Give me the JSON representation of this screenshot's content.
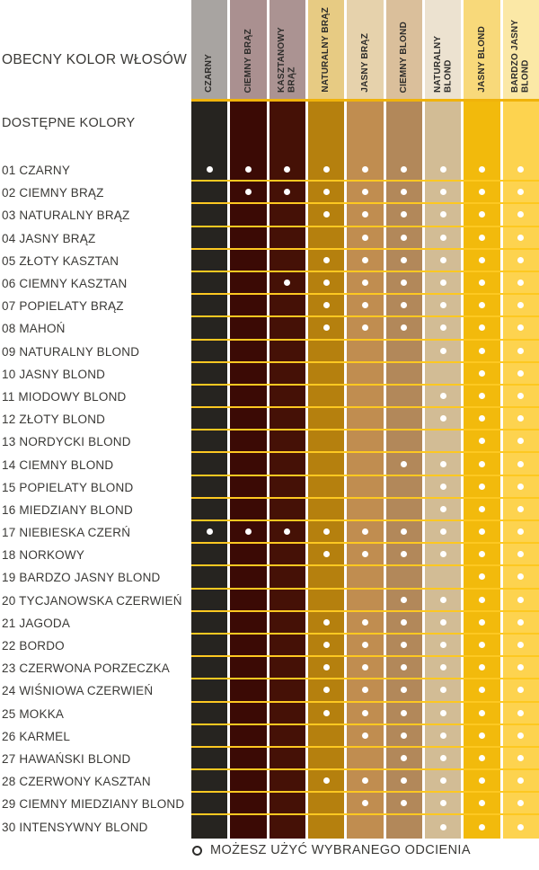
{
  "chart_data": {
    "type": "table",
    "title": "OBECNY KOLOR WŁOSÓW",
    "subtitle": "DOSTĘPNE KOLORY",
    "legend": "MOŻESZ UŻYĆ WYBRANEGO ODCIENIA",
    "legend_symbol": "open-circle",
    "columns": [
      "CZARNY",
      "CIEMNY BRĄZ",
      "KASZTANOWY BRĄZ",
      "NATURALNY BRĄZ",
      "JASNY BRĄZ",
      "CIEMNY BLOND",
      "NATURALNY BLOND",
      "JASNY BLOND",
      "BARDZO JASNY BLOND"
    ],
    "rows": [
      {
        "id": "01",
        "label": "CZARNY",
        "allowed_columns": [
          1,
          2,
          3,
          4,
          5,
          6,
          7,
          8,
          9
        ]
      },
      {
        "id": "02",
        "label": "CIEMNY BRĄZ",
        "allowed_columns": [
          2,
          3,
          4,
          5,
          6,
          7,
          8,
          9
        ]
      },
      {
        "id": "03",
        "label": "NATURALNY BRĄZ",
        "allowed_columns": [
          4,
          5,
          6,
          7,
          8,
          9
        ]
      },
      {
        "id": "04",
        "label": "JASNY BRĄZ",
        "allowed_columns": [
          5,
          6,
          7,
          8,
          9
        ]
      },
      {
        "id": "05",
        "label": "ZŁOTY KASZTAN",
        "allowed_columns": [
          4,
          5,
          6,
          7,
          8,
          9
        ]
      },
      {
        "id": "06",
        "label": "CIEMNY KASZTAN",
        "allowed_columns": [
          3,
          4,
          5,
          6,
          7,
          8,
          9
        ]
      },
      {
        "id": "07",
        "label": "POPIELATY BRĄZ",
        "allowed_columns": [
          4,
          5,
          6,
          7,
          8,
          9
        ]
      },
      {
        "id": "08",
        "label": "MAHOŃ",
        "allowed_columns": [
          4,
          5,
          6,
          7,
          8,
          9
        ]
      },
      {
        "id": "09",
        "label": "NATURALNY BLOND",
        "allowed_columns": [
          7,
          8,
          9
        ]
      },
      {
        "id": "10",
        "label": "JASNY BLOND",
        "allowed_columns": [
          8,
          9
        ]
      },
      {
        "id": "11",
        "label": "MIODOWY BLOND",
        "allowed_columns": [
          7,
          8,
          9
        ]
      },
      {
        "id": "12",
        "label": "ZŁOTY BLOND",
        "allowed_columns": [
          7,
          8,
          9
        ]
      },
      {
        "id": "13",
        "label": "NORDYCKI BLOND",
        "allowed_columns": [
          8,
          9
        ]
      },
      {
        "id": "14",
        "label": "CIEMNY BLOND",
        "allowed_columns": [
          6,
          7,
          8,
          9
        ]
      },
      {
        "id": "15",
        "label": "POPIELATY BLOND",
        "allowed_columns": [
          7,
          8,
          9
        ]
      },
      {
        "id": "16",
        "label": "MIEDZIANY BLOND",
        "allowed_columns": [
          7,
          8,
          9
        ]
      },
      {
        "id": "17",
        "label": "NIEBIESKA CZERŃ",
        "allowed_columns": [
          1,
          2,
          3,
          4,
          5,
          6,
          7,
          8,
          9
        ]
      },
      {
        "id": "18",
        "label": "NORKOWY",
        "allowed_columns": [
          4,
          5,
          6,
          7,
          8,
          9
        ]
      },
      {
        "id": "19",
        "label": "BARDZO JASNY BLOND",
        "allowed_columns": [
          8,
          9
        ]
      },
      {
        "id": "20",
        "label": "TYCJANOWSKA CZERWIEŃ",
        "allowed_columns": [
          6,
          7,
          8,
          9
        ]
      },
      {
        "id": "21",
        "label": "JAGODA",
        "allowed_columns": [
          4,
          5,
          6,
          7,
          8,
          9
        ]
      },
      {
        "id": "22",
        "label": "BORDO",
        "allowed_columns": [
          4,
          5,
          6,
          7,
          8,
          9
        ]
      },
      {
        "id": "23",
        "label": "CZERWONA PORZECZKA",
        "allowed_columns": [
          4,
          5,
          6,
          7,
          8,
          9
        ]
      },
      {
        "id": "24",
        "label": "WIŚNIOWA CZERWIEŃ",
        "allowed_columns": [
          4,
          5,
          6,
          7,
          8,
          9
        ]
      },
      {
        "id": "25",
        "label": "MOKKA",
        "allowed_columns": [
          4,
          5,
          6,
          7,
          8,
          9
        ]
      },
      {
        "id": "26",
        "label": "KARMEL",
        "allowed_columns": [
          5,
          6,
          7,
          8,
          9
        ]
      },
      {
        "id": "27",
        "label": "HAWAŃSKI BLOND",
        "allowed_columns": [
          6,
          7,
          8,
          9
        ]
      },
      {
        "id": "28",
        "label": "CZERWONY KASZTAN",
        "allowed_columns": [
          4,
          5,
          6,
          7,
          8,
          9
        ]
      },
      {
        "id": "29",
        "label": "CIEMNY MIEDZIANY BLOND",
        "allowed_columns": [
          5,
          6,
          7,
          8,
          9
        ]
      },
      {
        "id": "30",
        "label": "INTENSYWNY BLOND",
        "allowed_columns": [
          7,
          8,
          9
        ]
      }
    ]
  },
  "ui": {
    "palette": {
      "background": "#ffffff",
      "text": "#3a3936",
      "header_text": "#2e2d2b",
      "row_line": "#fdc821",
      "header_line": "#f0b30b",
      "dot": "#ffffff"
    },
    "column_styles": [
      {
        "header_bg": "#a8a4a1",
        "swatch": "#262420"
      },
      {
        "header_bg": "#aa9090",
        "swatch": "#3b0a05"
      },
      {
        "header_bg": "#ab9392",
        "swatch": "#451106"
      },
      {
        "header_bg": "#e7cb83",
        "swatch": "#b5800e"
      },
      {
        "header_bg": "#e6d2ac",
        "swatch": "#c08d50"
      },
      {
        "header_bg": "#dabf9b",
        "swatch": "#b2885a"
      },
      {
        "header_bg": "#ece2d0",
        "swatch": "#d2bc95"
      },
      {
        "header_bg": "#f8d97a",
        "swatch": "#f2ba0c"
      },
      {
        "header_bg": "#fbe8a6",
        "swatch": "#fdd34f"
      }
    ]
  }
}
